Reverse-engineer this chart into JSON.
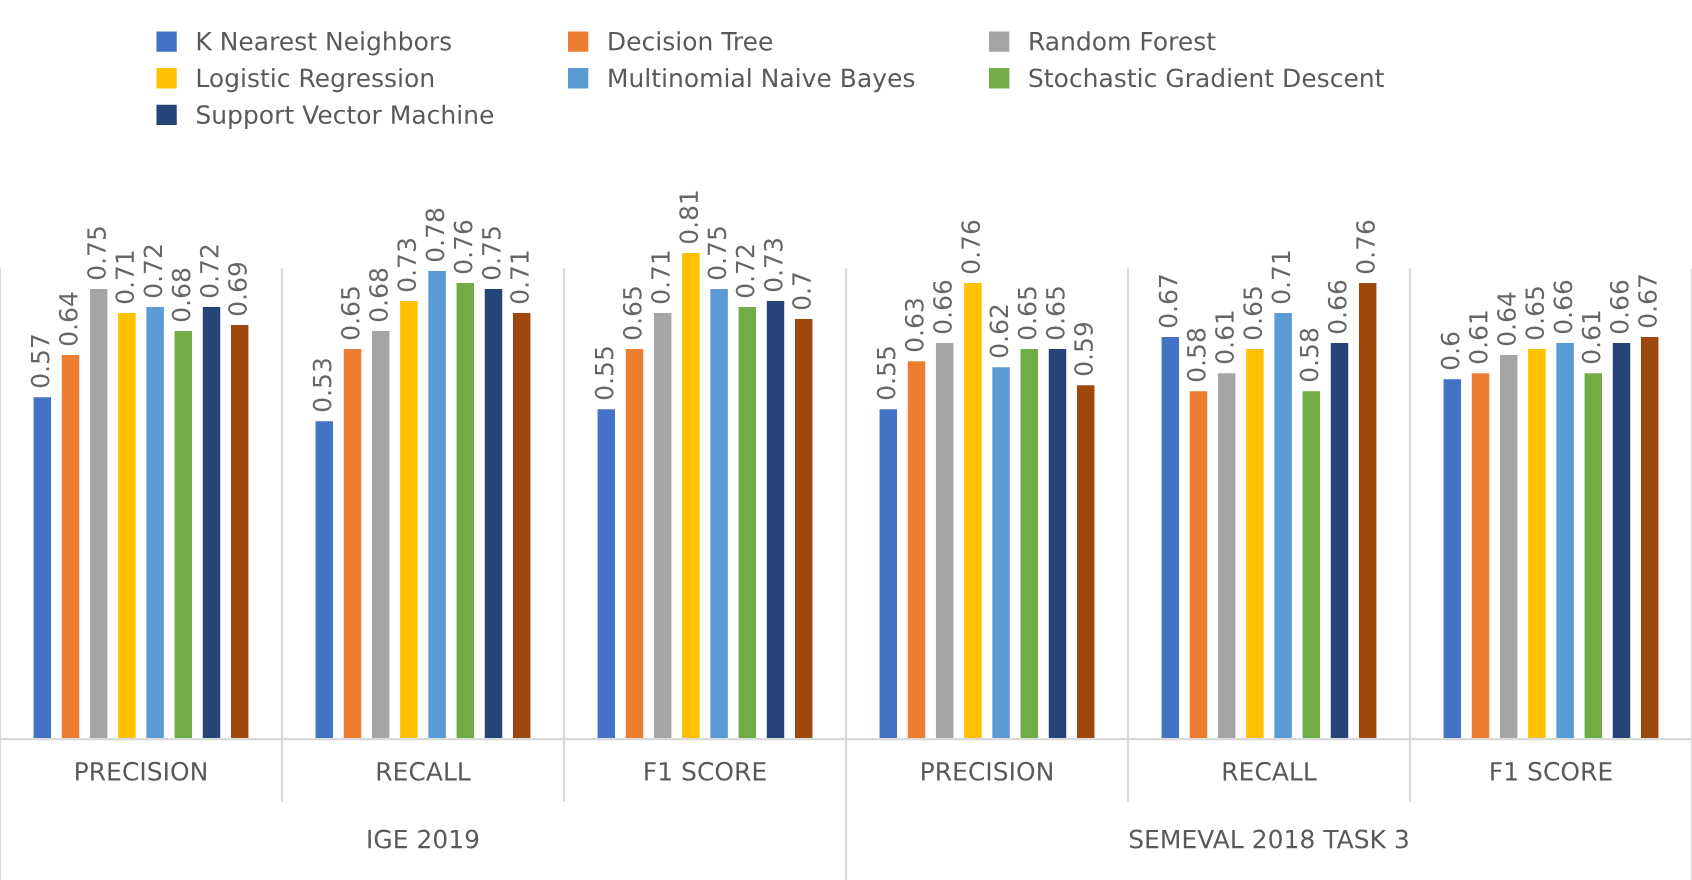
{
  "chart_data": {
    "type": "bar",
    "categories": [
      "PRECISION",
      "RECALL",
      "F1 SCORE",
      "PRECISION",
      "RECALL",
      "F1 SCORE"
    ],
    "annotations": [
      "IGE 2019",
      "SEMEVAL 2018 TASK 3"
    ],
    "series": [
      {
        "name": "K Nearest Neighbors",
        "color": "#4472c4",
        "values": [
          0.57,
          0.53,
          0.55,
          0.55,
          0.67,
          0.6
        ]
      },
      {
        "name": "Decision Tree",
        "color": "#ed7d31",
        "values": [
          0.64,
          0.65,
          0.65,
          0.63,
          0.58,
          0.61
        ]
      },
      {
        "name": "Random Forest",
        "color": "#a5a5a5",
        "values": [
          0.75,
          0.68,
          0.71,
          0.66,
          0.61,
          0.64
        ]
      },
      {
        "name": "Logistic Regression",
        "color": "#ffc000",
        "values": [
          0.71,
          0.73,
          0.81,
          0.76,
          0.65,
          0.65
        ]
      },
      {
        "name": "Multinomial Naive Bayes",
        "color": "#5b9bd5",
        "values": [
          0.72,
          0.78,
          0.75,
          0.62,
          0.71,
          0.66
        ]
      },
      {
        "name": "Stochastic Gradient Descent",
        "color": "#70ad47",
        "values": [
          0.68,
          0.76,
          0.72,
          0.65,
          0.58,
          0.61
        ]
      },
      {
        "name": "Support Vector Machine",
        "color": "#264478",
        "values": [
          0.72,
          0.75,
          0.73,
          0.65,
          0.66,
          0.66
        ]
      },
      {
        "color": "#9e480e",
        "values": [
          0.69,
          0.71,
          0.7,
          0.59,
          0.76,
          0.67
        ]
      }
    ],
    "data_labels": true,
    "grid": false,
    "legend": "top"
  }
}
